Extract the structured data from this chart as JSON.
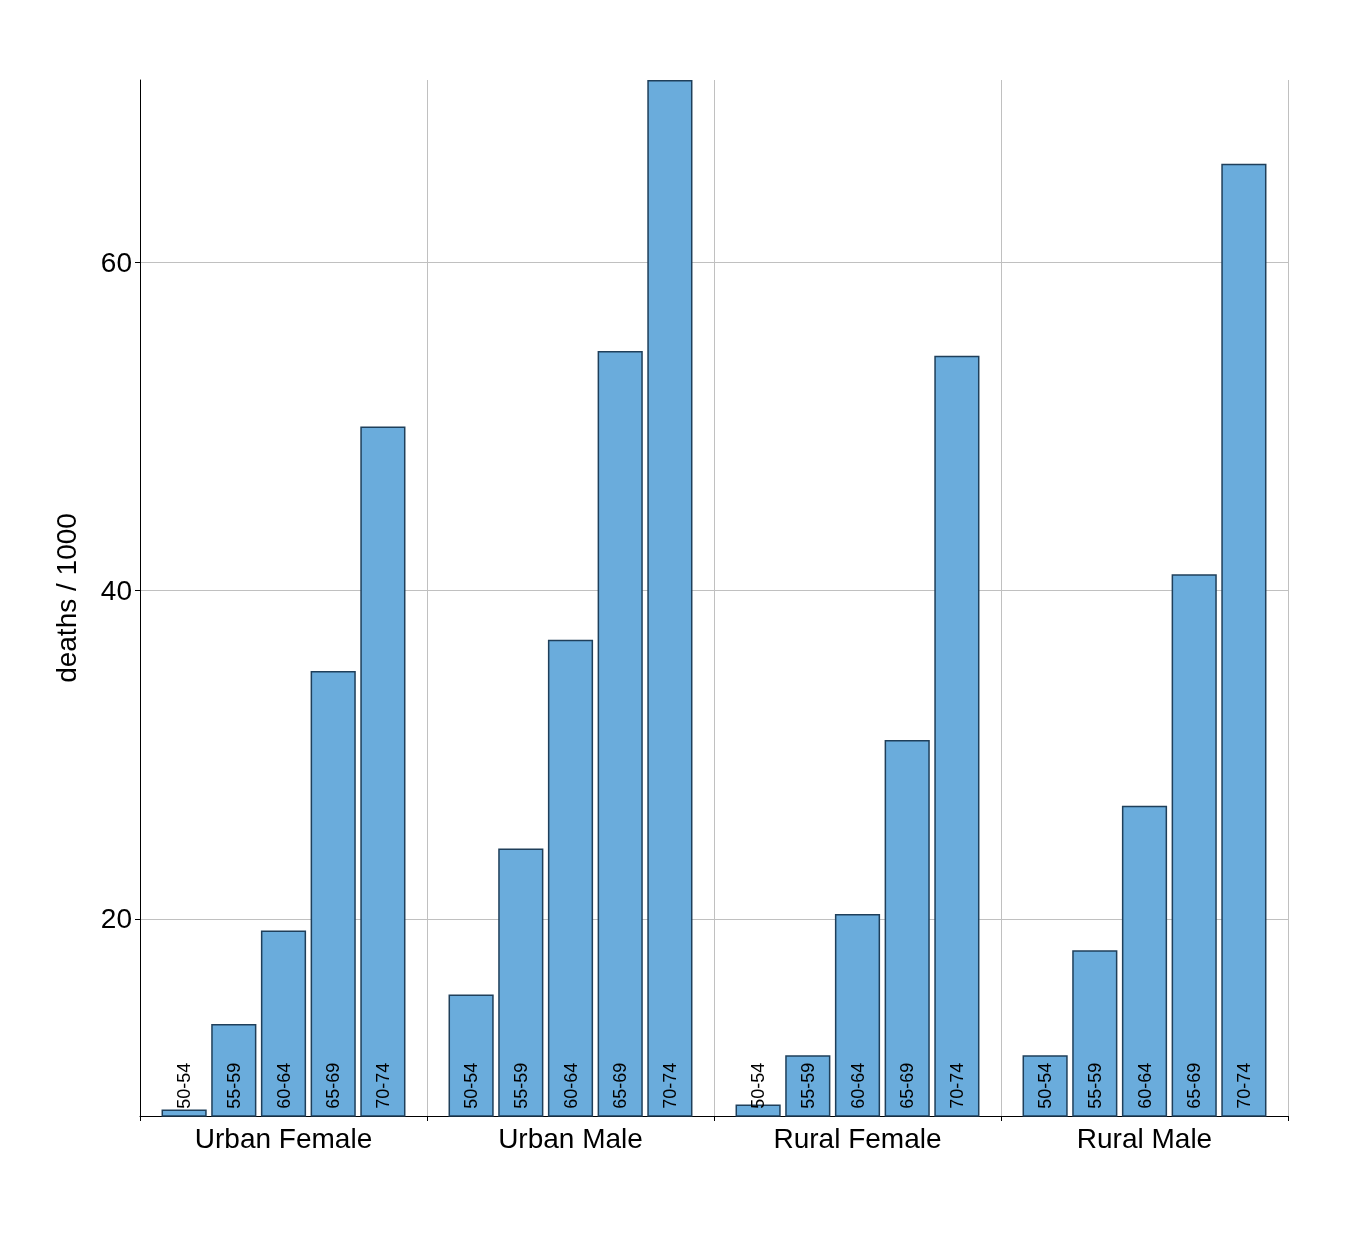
{
  "chart_data": {
    "type": "bar",
    "ylabel": "deaths / 1000",
    "categories": [
      "Urban Female",
      "Urban Male",
      "Rural Female",
      "Rural Male"
    ],
    "series": [
      {
        "name": "50-54",
        "color": "#6aacdc",
        "values": [
          8.4,
          15.4,
          8.7,
          11.7
        ]
      },
      {
        "name": "55-59",
        "color": "#6aacdc",
        "values": [
          13.6,
          24.3,
          11.7,
          18.1
        ]
      },
      {
        "name": "60-64",
        "color": "#6aacdc",
        "values": [
          19.3,
          37.0,
          20.3,
          26.9
        ]
      },
      {
        "name": "65-69",
        "color": "#6aacdc",
        "values": [
          35.1,
          54.6,
          30.9,
          41.0
        ]
      },
      {
        "name": "70-74",
        "color": "#6aacdc",
        "values": [
          50.0,
          71.1,
          54.3,
          66.0
        ]
      }
    ],
    "ylim": [
      8,
      71.1
    ],
    "yticks": [
      20,
      40,
      60
    ],
    "grid": true
  }
}
